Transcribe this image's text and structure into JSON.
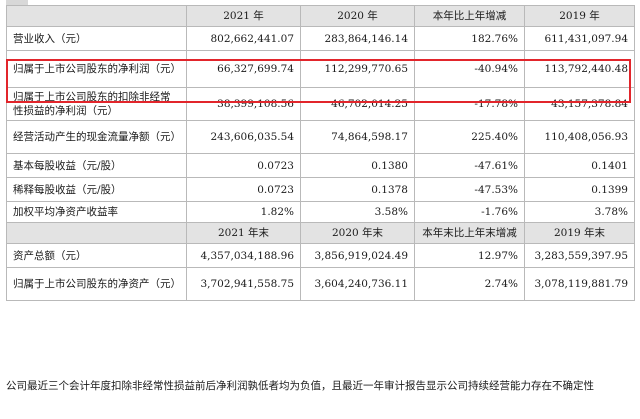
{
  "table": {
    "header1": [
      "",
      "2021 年",
      "2020 年",
      "本年比上年增减",
      "2019 年"
    ],
    "rows1": [
      {
        "label": "营业收入（元）",
        "v2021": "802,662,441.07",
        "v2020": "283,864,146.14",
        "change": "182.76%",
        "v2019": "611,431,097.94"
      },
      {
        "label": "归属于上市公司股东的净利润（元）",
        "v2021": "66,327,699.74",
        "v2020": "112,299,770.65",
        "change": "-40.94%",
        "v2019": "113,792,440.48"
      },
      {
        "label": "归属于上市公司股东的扣除非经常性损益的净利润（元）",
        "v2021": "38,399,108.56",
        "v2020": "46,702,014.25",
        "change": "-17.78%",
        "v2019": "43,157,378.84"
      },
      {
        "label": "经营活动产生的现金流量净额（元）",
        "v2021": "243,606,035.54",
        "v2020": "74,864,598.17",
        "change": "225.40%",
        "v2019": "110,408,056.93"
      },
      {
        "label": "基本每股收益（元/股）",
        "v2021": "0.0723",
        "v2020": "0.1380",
        "change": "-47.61%",
        "v2019": "0.1401"
      },
      {
        "label": "稀释每股收益（元/股）",
        "v2021": "0.0723",
        "v2020": "0.1378",
        "change": "-47.53%",
        "v2019": "0.1399"
      },
      {
        "label": "加权平均净资产收益率",
        "v2021": "1.82%",
        "v2020": "3.58%",
        "change": "-1.76%",
        "v2019": "3.78%"
      }
    ],
    "header2": [
      "",
      "2021 年末",
      "2020 年末",
      "本年末比上年末增减",
      "2019 年末"
    ],
    "rows2": [
      {
        "label": "资产总额（元）",
        "v2021": "4,357,034,188.96",
        "v2020": "3,856,919,024.49",
        "change": "12.97%",
        "v2019": "3,283,559,397.95"
      },
      {
        "label": "归属于上市公司股东的净资产（元）",
        "v2021": "3,702,941,558.75",
        "v2020": "3,604,240,736.11",
        "change": "2.74%",
        "v2019": "3,078,119,881.79"
      }
    ]
  },
  "footnote": "公司最近三个会计年度扣除非经常性损益前后净利润孰低者均为负值，且最近一年审计报告显示公司持续经营能力存在不确定性",
  "highlight_color": "#e2252b",
  "header_bg": "#e3e3e3"
}
